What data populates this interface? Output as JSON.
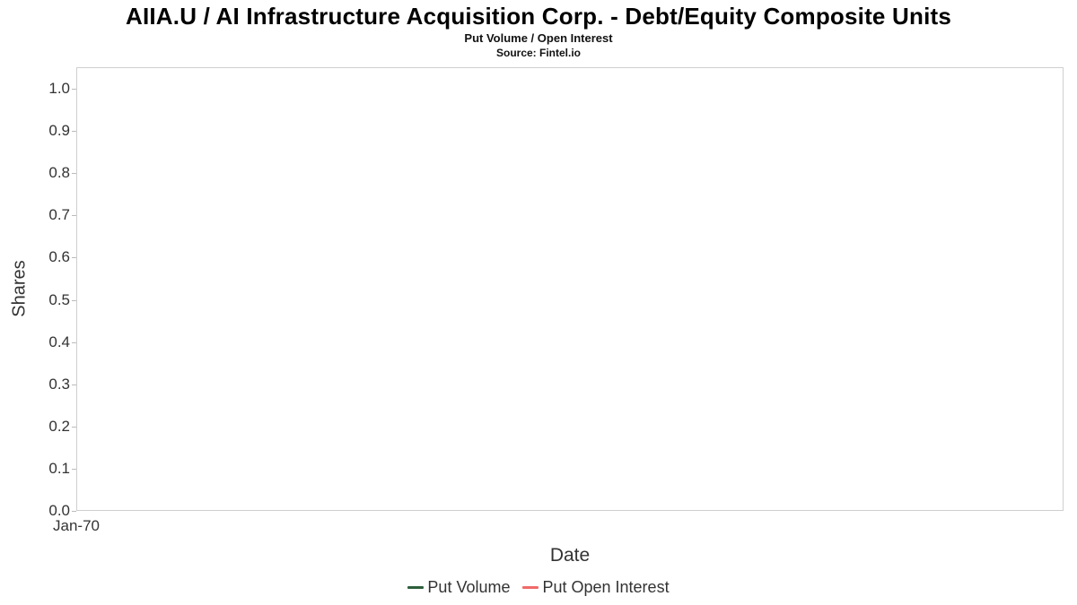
{
  "header": {
    "title": "AIIA.U / AI Infrastructure Acquisition Corp. - Debt/Equity Composite Units",
    "subtitle": "Put Volume / Open Interest",
    "source": "Source: Fintel.io"
  },
  "chart_data": {
    "type": "line",
    "title": "AIIA.U / AI Infrastructure Acquisition Corp. - Debt/Equity Composite Units",
    "subtitle": "Put Volume / Open Interest",
    "source_note": "Source: Fintel.io",
    "xlabel": "Date",
    "ylabel": "Shares",
    "ylim": [
      0.0,
      1.0
    ],
    "yticks": [
      "1.0",
      "0.9",
      "0.8",
      "0.7",
      "0.6",
      "0.5",
      "0.4",
      "0.3",
      "0.2",
      "0.1",
      "0.0"
    ],
    "xticks": [
      "Jan-70"
    ],
    "grid": false,
    "legend_position": "bottom",
    "series": [
      {
        "name": "Put Volume",
        "color": "#2d5f3a",
        "x": [],
        "values": []
      },
      {
        "name": "Put Open Interest",
        "color": "#f16a6a",
        "x": [],
        "values": []
      }
    ]
  }
}
